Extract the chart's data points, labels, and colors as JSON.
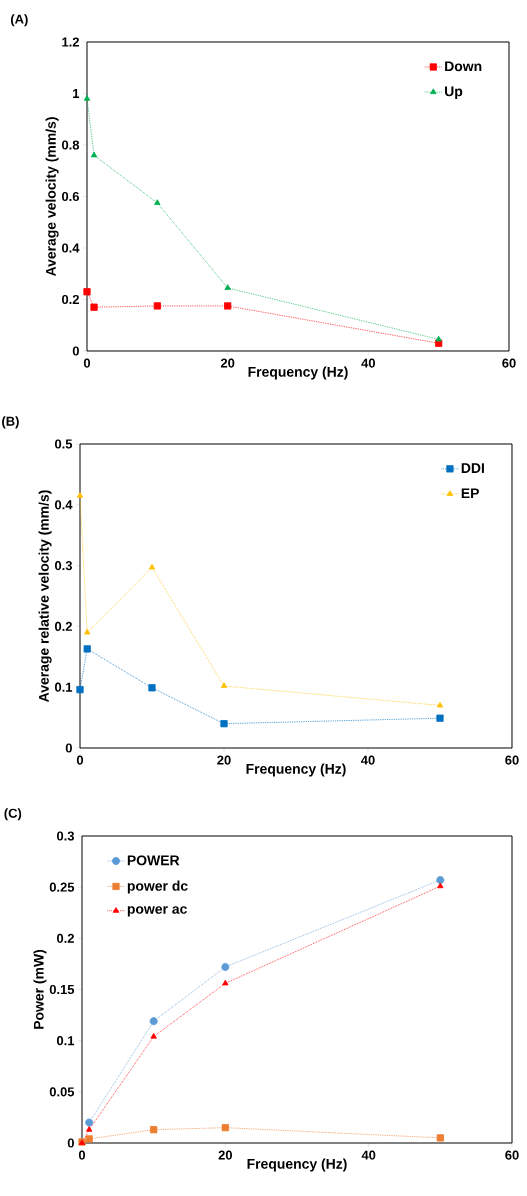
{
  "chart_data": [
    {
      "type": "line",
      "title": "(A)",
      "xlabel": "Frequency (Hz)",
      "ylabel": "Average velocity (mm/s)",
      "x": [
        0,
        1,
        10,
        20,
        50
      ],
      "xlim": [
        0,
        60
      ],
      "xticks": [
        0,
        20,
        40,
        60
      ],
      "ylim": [
        0,
        1.2
      ],
      "yticks": [
        0,
        0.2,
        0.4,
        0.6,
        0.8,
        1,
        1.2
      ],
      "grid": false,
      "legend": "top right",
      "line_style": "dotted",
      "series": [
        {
          "name": "Down",
          "color": "#ff0000",
          "marker": "square",
          "values": [
            0.23,
            0.17,
            0.175,
            0.175,
            0.03
          ]
        },
        {
          "name": "Up",
          "color": "#00b050",
          "marker": "triangle",
          "values": [
            0.98,
            0.76,
            0.575,
            0.245,
            0.045
          ]
        }
      ]
    },
    {
      "type": "line",
      "title": "(B)",
      "xlabel": "Frequency (Hz)",
      "ylabel": "Average relative velocity (mm/s)",
      "x": [
        0,
        1,
        10,
        20,
        50
      ],
      "xlim": [
        0,
        60
      ],
      "xticks": [
        0,
        20,
        40,
        60
      ],
      "ylim": [
        0,
        0.5
      ],
      "yticks": [
        0,
        0.1,
        0.2,
        0.3,
        0.4,
        0.5
      ],
      "grid": false,
      "legend": "top right",
      "line_style": "dotted",
      "series": [
        {
          "name": "DDI",
          "color": "#0070c0",
          "marker": "square",
          "values": [
            0.096,
            0.163,
            0.099,
            0.04,
            0.049
          ]
        },
        {
          "name": "EP",
          "color": "#ffc000",
          "marker": "triangle",
          "values": [
            0.415,
            0.19,
            0.297,
            0.102,
            0.07
          ]
        }
      ]
    },
    {
      "type": "line",
      "title": "(C)",
      "xlabel": "Frequency (Hz)",
      "ylabel": "Power (mW)",
      "x": [
        0,
        1,
        10,
        20,
        50
      ],
      "xlim": [
        0,
        60
      ],
      "xticks": [
        0,
        20,
        40,
        60
      ],
      "ylim": [
        0,
        0.3
      ],
      "yticks": [
        0,
        0.05,
        0.1,
        0.15,
        0.2,
        0.25,
        0.3
      ],
      "grid": false,
      "legend": "top left",
      "line_style": "dotted",
      "series": [
        {
          "name": "POWER",
          "color": "#5b9bd5",
          "marker": "circle",
          "values": [
            null,
            0.02,
            0.119,
            0.172,
            0.257
          ]
        },
        {
          "name": "power dc",
          "color": "#ed7d31",
          "marker": "square",
          "values": [
            0.001,
            0.004,
            0.013,
            0.015,
            0.005
          ]
        },
        {
          "name": "power ac",
          "color": "#ff0000",
          "marker": "triangle",
          "values": [
            0,
            0.013,
            0.104,
            0.156,
            0.251
          ]
        }
      ]
    }
  ]
}
